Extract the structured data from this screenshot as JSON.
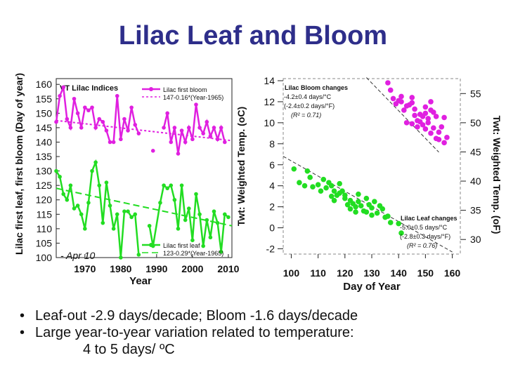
{
  "title": "Lilac Leaf and Bloom",
  "colors": {
    "title": "#2e2e8a",
    "bloom": "#e020e0",
    "leaf": "#22dd22",
    "text": "#111111"
  },
  "chart_data": [
    {
      "type": "line",
      "title": "VT Lilac Indices",
      "xlabel": "Year",
      "ylabel": "Lilac first leaf, first bloom (Day of year)",
      "xlim": [
        1962,
        2011
      ],
      "ylim": [
        100,
        162
      ],
      "xticks": [
        1970,
        1980,
        1990,
        2000,
        2010
      ],
      "yticks": [
        100,
        105,
        110,
        115,
        120,
        125,
        130,
        135,
        140,
        145,
        150,
        155,
        160
      ],
      "annotation": "- Apr 10",
      "series": [
        {
          "name": "Lilac first bloom",
          "fit_label": "147-0.16*(Year-1965)",
          "color": "#e020e0",
          "fit": [
            [
              1962,
              147.5
            ],
            [
              2011,
              140.5
            ]
          ],
          "points": [
            [
              1962,
              147
            ],
            [
              1963,
              156
            ],
            [
              1964,
              159
            ],
            [
              1965,
              148
            ],
            [
              1966,
              145
            ],
            [
              1967,
              155
            ],
            [
              1968,
              150
            ],
            [
              1969,
              145
            ],
            [
              1970,
              152
            ],
            [
              1971,
              151
            ],
            [
              1972,
              152
            ],
            [
              1973,
              145
            ],
            [
              1974,
              148
            ],
            [
              1975,
              147
            ],
            [
              1976,
              144
            ],
            [
              1977,
              140
            ],
            [
              1978,
              140
            ],
            [
              1979,
              156
            ],
            [
              1980,
              141
            ],
            [
              1981,
              148
            ],
            [
              1982,
              144
            ],
            [
              1983,
              152
            ],
            [
              1984,
              146
            ],
            [
              1985,
              143
            ],
            [
              1989,
              137
            ],
            [
              1992,
              145
            ],
            [
              1993,
              150
            ],
            [
              1994,
              140
            ],
            [
              1995,
              145
            ],
            [
              1996,
              136
            ],
            [
              1997,
              144
            ],
            [
              1998,
              140
            ],
            [
              1999,
              145
            ],
            [
              2000,
              141
            ],
            [
              2001,
              153
            ],
            [
              2002,
              145
            ],
            [
              2003,
              143
            ],
            [
              2004,
              147
            ],
            [
              2005,
              142
            ],
            [
              2006,
              145
            ],
            [
              2007,
              141
            ],
            [
              2008,
              145
            ],
            [
              2009,
              140
            ]
          ]
        },
        {
          "name": "Lilac first leaf",
          "fit_label": "123-0.29*(Year-1965)",
          "color": "#22dd22",
          "fit": [
            [
              1962,
              124
            ],
            [
              2011,
              111
            ]
          ],
          "points": [
            [
              1962,
              130
            ],
            [
              1963,
              128
            ],
            [
              1964,
              122
            ],
            [
              1965,
              120
            ],
            [
              1966,
              125
            ],
            [
              1967,
              117
            ],
            [
              1968,
              118
            ],
            [
              1969,
              115
            ],
            [
              1970,
              110
            ],
            [
              1971,
              119
            ],
            [
              1972,
              130
            ],
            [
              1973,
              133
            ],
            [
              1974,
              125
            ],
            [
              1975,
              112
            ],
            [
              1976,
              126
            ],
            [
              1977,
              118
            ],
            [
              1978,
              110
            ],
            [
              1979,
              115
            ],
            [
              1980,
              100
            ],
            [
              1981,
              116
            ],
            [
              1982,
              116
            ],
            [
              1983,
              114
            ],
            [
              1984,
              115
            ],
            [
              1985,
              101
            ],
            [
              1988,
              111
            ],
            [
              1989,
              104
            ],
            [
              1991,
              119
            ],
            [
              1992,
              125
            ],
            [
              1993,
              124
            ],
            [
              1994,
              125
            ],
            [
              1995,
              120
            ],
            [
              1996,
              110
            ],
            [
              1997,
              125
            ],
            [
              1998,
              113
            ],
            [
              1999,
              117
            ],
            [
              2000,
              106
            ],
            [
              2001,
              122
            ],
            [
              2002,
              115
            ],
            [
              2003,
              104
            ],
            [
              2004,
              113
            ],
            [
              2005,
              107
            ],
            [
              2006,
              116
            ],
            [
              2007,
              112
            ],
            [
              2008,
              102
            ],
            [
              2009,
              115
            ],
            [
              2010,
              114
            ]
          ]
        }
      ]
    },
    {
      "type": "scatter",
      "xlabel": "Day of Year",
      "ylabel_left": "Twt: Weighted Temp. (oC)",
      "ylabel_right": "Twt: Weighted Temp. (oF)",
      "xlim": [
        97,
        163
      ],
      "ylim": [
        -2.5,
        14.2
      ],
      "xticks": [
        100,
        110,
        120,
        130,
        140,
        150,
        160
      ],
      "yticks_left": [
        -2,
        0,
        2,
        4,
        6,
        8,
        10,
        12,
        14
      ],
      "yticks_right": [
        30,
        35,
        40,
        45,
        50,
        55
      ],
      "series": [
        {
          "name": "Lilac Bloom changes",
          "color": "#e020e0",
          "slope_c": "-4.2±0.4 days/°C",
          "slope_f": "(-2.4±0.2 days/°F)",
          "r2": "(R² = 0.71)",
          "fit": [
            [
              128,
              14.3
            ],
            [
              155,
              7.2
            ]
          ],
          "points": [
            [
              136,
              13.8
            ],
            [
              137,
              13.1
            ],
            [
              138,
              12.3
            ],
            [
              139,
              11.8
            ],
            [
              140,
              12.1
            ],
            [
              141,
              12.5
            ],
            [
              142,
              11.2
            ],
            [
              143,
              11.6
            ],
            [
              144,
              11.7
            ],
            [
              145,
              11.9
            ],
            [
              146,
              11.3
            ],
            [
              147,
              10.2
            ],
            [
              148,
              10.8
            ],
            [
              149,
              10.6
            ],
            [
              150,
              10.9
            ],
            [
              151,
              10.4
            ],
            [
              152,
              11.2
            ],
            [
              153,
              11.0
            ],
            [
              154,
              10.6
            ],
            [
              143,
              10.0
            ],
            [
              145,
              9.9
            ],
            [
              147,
              9.6
            ],
            [
              150,
              9.4
            ],
            [
              152,
              9.0
            ],
            [
              153,
              9.5
            ],
            [
              155,
              9.1
            ],
            [
              155,
              8.4
            ],
            [
              156,
              9.6
            ],
            [
              157,
              10.5
            ],
            [
              158,
              8.6
            ],
            [
              157,
              8.1
            ],
            [
              154,
              8.5
            ],
            [
              148,
              10.1
            ],
            [
              149,
              9.8
            ],
            [
              151,
              10.0
            ],
            [
              146,
              10.7
            ],
            [
              141,
              12.0
            ],
            [
              150,
              11.5
            ],
            [
              152,
              12.0
            ],
            [
              145,
              12.4
            ]
          ]
        },
        {
          "name": "Lilac Leaf changes",
          "color": "#22dd22",
          "slope_c": "-5.0±0.5 days/°C",
          "slope_f": "(-2.8±0.3 days/°F)",
          "r2": "(R² = 0.76)",
          "fit": [
            [
              97,
              6.8
            ],
            [
              160,
              -2.3
            ]
          ],
          "points": [
            [
              101,
              5.6
            ],
            [
              103,
              4.3
            ],
            [
              105,
              4.0
            ],
            [
              106,
              5.4
            ],
            [
              107,
              4.8
            ],
            [
              108,
              3.9
            ],
            [
              110,
              4.1
            ],
            [
              111,
              3.5
            ],
            [
              112,
              4.6
            ],
            [
              113,
              3.8
            ],
            [
              114,
              4.3
            ],
            [
              115,
              4.0
            ],
            [
              116,
              3.5
            ],
            [
              116,
              2.6
            ],
            [
              117,
              3.1
            ],
            [
              118,
              3.3
            ],
            [
              119,
              3.5
            ],
            [
              120,
              2.8
            ],
            [
              120,
              3.1
            ],
            [
              121,
              2.2
            ],
            [
              122,
              2.6
            ],
            [
              122,
              1.8
            ],
            [
              123,
              2.3
            ],
            [
              124,
              2.0
            ],
            [
              125,
              2.5
            ],
            [
              126,
              2.1
            ],
            [
              127,
              1.6
            ],
            [
              128,
              2.8
            ],
            [
              129,
              2.2
            ],
            [
              130,
              1.9
            ],
            [
              131,
              2.5
            ],
            [
              132,
              1.4
            ],
            [
              133,
              2.1
            ],
            [
              134,
              1.8
            ],
            [
              135,
              1.0
            ],
            [
              136,
              1.1
            ],
            [
              137,
              0.5
            ],
            [
              128,
              1.5
            ],
            [
              140,
              0.4
            ],
            [
              141,
              -0.5
            ],
            [
              130,
              1.2
            ],
            [
              125,
              3.2
            ],
            [
              118,
              4.2
            ],
            [
              115,
              3.0
            ],
            [
              124,
              1.5
            ]
          ]
        }
      ]
    }
  ],
  "bullets": [
    {
      "text": "Leaf-out -2.9 days/decade; Bloom -1.6 days/decade"
    },
    {
      "text": "Large year-to-year variation related to temperature:"
    },
    {
      "text": "4 to 5 days/ ºC"
    }
  ]
}
